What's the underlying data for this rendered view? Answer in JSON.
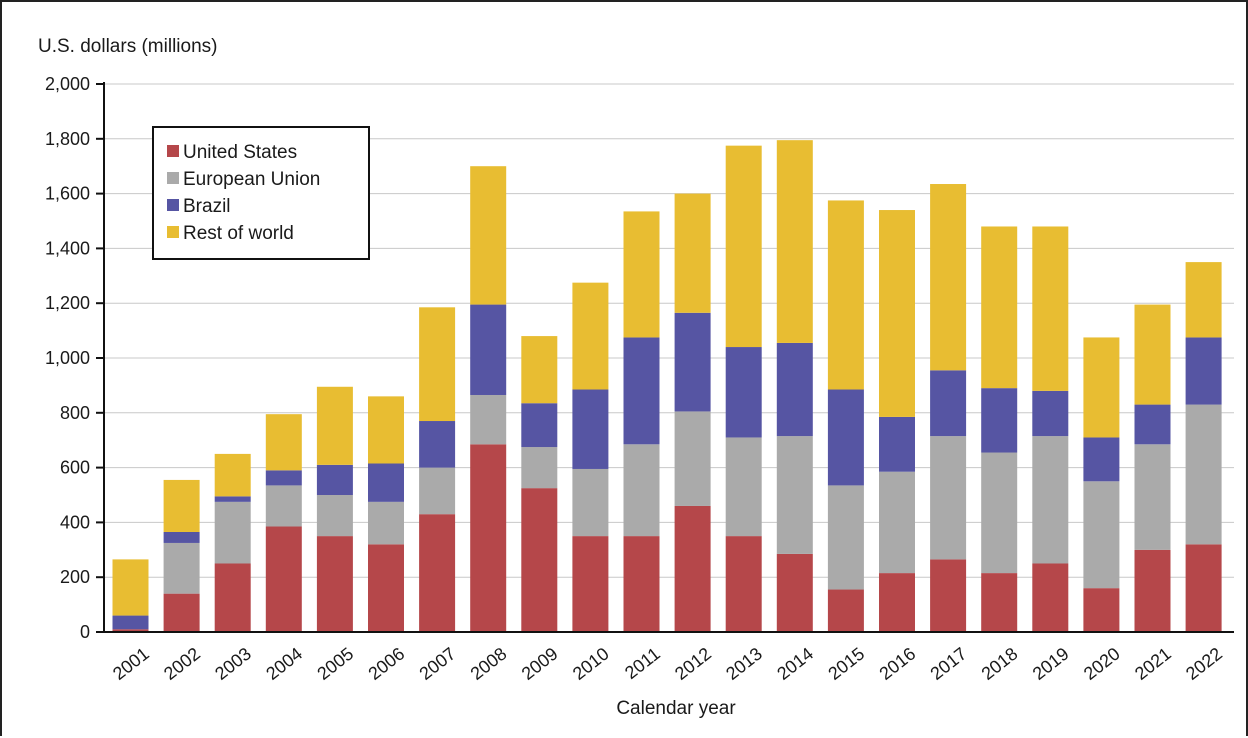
{
  "chart_data": {
    "type": "bar",
    "stacked": true,
    "title": "",
    "ylabel": "U.S. dollars (millions)",
    "xlabel": "Calendar year",
    "ylim": [
      0,
      2000
    ],
    "yticks": [
      0,
      200,
      400,
      600,
      800,
      1000,
      1200,
      1400,
      1600,
      1800,
      2000
    ],
    "ytick_labels": [
      "0",
      "200",
      "400",
      "600",
      "800",
      "1,000",
      "1,200",
      "1,400",
      "1,600",
      "1,800",
      "2,000"
    ],
    "grid": true,
    "legend_position": "top-left",
    "categories": [
      "2001",
      "2002",
      "2003",
      "2004",
      "2005",
      "2006",
      "2007",
      "2008",
      "2009",
      "2010",
      "2011",
      "2012",
      "2013",
      "2014",
      "2015",
      "2016",
      "2017",
      "2018",
      "2019",
      "2020",
      "2021",
      "2022"
    ],
    "series": [
      {
        "name": "United States",
        "color": "#b5474a",
        "values": [
          10,
          140,
          250,
          385,
          350,
          320,
          430,
          685,
          525,
          350,
          350,
          460,
          350,
          285,
          155,
          215,
          265,
          215,
          250,
          160,
          300,
          320
        ]
      },
      {
        "name": "European Union",
        "color": "#aaaaaa",
        "values": [
          0,
          185,
          225,
          150,
          150,
          155,
          170,
          180,
          150,
          245,
          335,
          345,
          360,
          430,
          380,
          370,
          450,
          440,
          465,
          390,
          385,
          510
        ]
      },
      {
        "name": "Brazil",
        "color": "#5655a3",
        "values": [
          50,
          40,
          20,
          55,
          110,
          140,
          170,
          330,
          160,
          290,
          390,
          360,
          330,
          340,
          350,
          200,
          240,
          235,
          165,
          160,
          145,
          245
        ]
      },
      {
        "name": "Rest of world",
        "color": "#e8bd32",
        "values": [
          205,
          190,
          155,
          205,
          285,
          245,
          415,
          505,
          245,
          390,
          460,
          435,
          735,
          740,
          690,
          755,
          680,
          590,
          600,
          365,
          365,
          275
        ]
      }
    ]
  }
}
